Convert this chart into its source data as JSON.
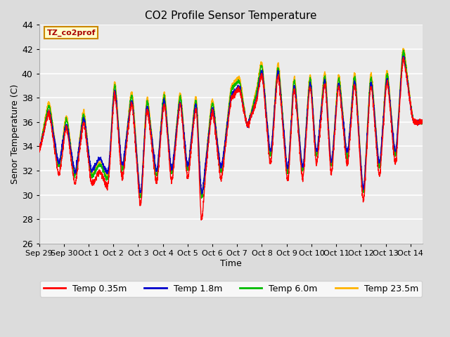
{
  "title": "CO2 Profile Sensor Temperature",
  "xlabel": "Time",
  "ylabel": "Senor Temperature (C)",
  "ylim": [
    26,
    44
  ],
  "yticks": [
    26,
    28,
    30,
    32,
    34,
    36,
    38,
    40,
    42,
    44
  ],
  "xlim_days": [
    0,
    15.5
  ],
  "xtick_labels": [
    "Sep 29",
    "Sep 30",
    "Oct 1",
    "Oct 2",
    "Oct 3",
    "Oct 4",
    "Oct 5",
    "Oct 6",
    "Oct 7",
    "Oct 8",
    "Oct 9",
    "Oct 10",
    "Oct 11",
    "Oct 12",
    "Oct 13",
    "Oct 14"
  ],
  "xtick_positions": [
    0,
    1,
    2,
    3,
    4,
    5,
    6,
    7,
    8,
    9,
    10,
    11,
    12,
    13,
    14,
    15
  ],
  "colors": {
    "temp035": "#FF0000",
    "temp18": "#0000CC",
    "temp60": "#00BB00",
    "temp235": "#FFB300"
  },
  "legend_label": "TZ_co2prof",
  "legend_entries": [
    "Temp 0.35m",
    "Temp 1.8m",
    "Temp 6.0m",
    "Temp 23.5m"
  ],
  "bg_color": "#DCDCDC",
  "plot_bg": "#EBEBEB",
  "grid_color": "#FFFFFF",
  "annotation_bg": "#FFFFCC",
  "annotation_border": "#CC8800",
  "figsize": [
    6.4,
    4.8
  ],
  "dpi": 100
}
